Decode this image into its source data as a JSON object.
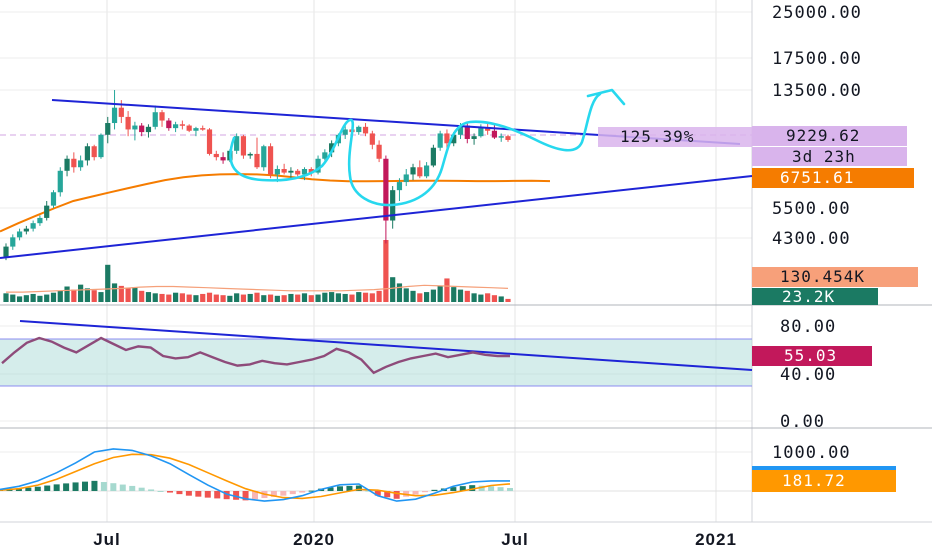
{
  "chart_data": [
    {
      "type": "candlestick",
      "panel": "price",
      "scale": "log",
      "y_ticks": [
        "25000.00",
        "17500.00",
        "13500.00",
        "9229.62",
        "5500.00",
        "4300.00"
      ],
      "labels": {
        "last_price": "9229.62",
        "countdown": "3d 23h",
        "ma_value": "6751.61",
        "volume_value": "130.454K",
        "volume_value_2": "23.2K",
        "change_percent": "125.39%"
      },
      "x_ticks": [
        "Jul",
        "2020",
        "Jul",
        "2021"
      ],
      "candles": [
        [
          3800,
          4200,
          3700,
          4100
        ],
        [
          4100,
          4500,
          4000,
          4400
        ],
        [
          4400,
          4700,
          4300,
          4600
        ],
        [
          4600,
          4800,
          4500,
          4700
        ],
        [
          4700,
          5000,
          4600,
          4900
        ],
        [
          4900,
          5200,
          4800,
          5100
        ],
        [
          5100,
          5800,
          5000,
          5600
        ],
        [
          5600,
          6300,
          5500,
          6200
        ],
        [
          6200,
          7500,
          6000,
          7300
        ],
        [
          7300,
          8200,
          7000,
          8000
        ],
        [
          8000,
          8400,
          7200,
          7500
        ],
        [
          7500,
          8200,
          7300,
          7900
        ],
        [
          7900,
          9000,
          7600,
          8800
        ],
        [
          8800,
          8900,
          7900,
          8100
        ],
        [
          8100,
          9700,
          8000,
          9600
        ],
        [
          9600,
          11000,
          9000,
          10500
        ],
        [
          10500,
          13500,
          10000,
          11800
        ],
        [
          11800,
          12500,
          10500,
          11000
        ],
        [
          11000,
          11500,
          9500,
          10000
        ],
        [
          10000,
          10600,
          9200,
          10300
        ],
        [
          10300,
          10500,
          9500,
          9800
        ],
        [
          9800,
          10400,
          9400,
          10200
        ],
        [
          10200,
          12000,
          10000,
          11400
        ],
        [
          11400,
          11600,
          10200,
          10700
        ],
        [
          10700,
          10900,
          9900,
          10100
        ],
        [
          10100,
          10600,
          9800,
          10400
        ],
        [
          10400,
          10700,
          10000,
          10300
        ],
        [
          10300,
          10400,
          9800,
          9900
        ],
        [
          9900,
          10200,
          9500,
          10100
        ],
        [
          10100,
          10300,
          9900,
          10000
        ],
        [
          10000,
          10100,
          8200,
          8300
        ],
        [
          8300,
          8500,
          7900,
          8100
        ],
        [
          8100,
          8400,
          7700,
          7900
        ],
        [
          7900,
          8600,
          7800,
          8500
        ],
        [
          8500,
          9700,
          8300,
          9500
        ],
        [
          9500,
          9600,
          8000,
          8200
        ],
        [
          8200,
          8400,
          8000,
          8300
        ],
        [
          8300,
          9400,
          7400,
          7500
        ],
        [
          7500,
          8900,
          7300,
          8800
        ],
        [
          8800,
          9000,
          6900,
          7100
        ],
        [
          7100,
          7600,
          6700,
          7400
        ],
        [
          7400,
          7700,
          7100,
          7200
        ],
        [
          7200,
          7500,
          6900,
          7300
        ],
        [
          7300,
          7400,
          7000,
          7100
        ],
        [
          7100,
          7500,
          6800,
          7400
        ],
        [
          7400,
          7500,
          7000,
          7200
        ],
        [
          7200,
          8200,
          7100,
          8000
        ],
        [
          8000,
          8600,
          7900,
          8400
        ],
        [
          8400,
          9200,
          8100,
          9000
        ],
        [
          9000,
          9700,
          8800,
          9600
        ],
        [
          9600,
          10300,
          9300,
          10000
        ],
        [
          10000,
          10400,
          9700,
          9800
        ],
        [
          9800,
          10300,
          9600,
          10200
        ],
        [
          10200,
          10500,
          9500,
          9700
        ],
        [
          9700,
          9900,
          8600,
          8900
        ],
        [
          8900,
          9200,
          7800,
          8000
        ],
        [
          8000,
          8200,
          4200,
          5000
        ],
        [
          5000,
          6500,
          4700,
          6300
        ],
        [
          6300,
          6900,
          5800,
          6700
        ],
        [
          6700,
          7400,
          6500,
          7100
        ],
        [
          7100,
          7700,
          6800,
          7500
        ],
        [
          7500,
          7900,
          6900,
          7000
        ],
        [
          7000,
          7800,
          6900,
          7600
        ],
        [
          7600,
          8900,
          7500,
          8700
        ],
        [
          8700,
          9900,
          8500,
          9700
        ],
        [
          9700,
          10000,
          8600,
          9000
        ],
        [
          9000,
          9800,
          8800,
          9600
        ],
        [
          9600,
          10500,
          9300,
          10300
        ],
        [
          10300,
          10600,
          9000,
          9300
        ],
        [
          9300,
          9700,
          8900,
          9500
        ],
        [
          9500,
          10400,
          9400,
          10100
        ],
        [
          10100,
          10500,
          9600,
          9900
        ],
        [
          9900,
          10400,
          9300,
          9400
        ],
        [
          9400,
          9700,
          9100,
          9500
        ],
        [
          9500,
          9600,
          9100,
          9230
        ]
      ],
      "ma": [
        4600,
        4900,
        5200,
        5500,
        5800,
        6000,
        6200,
        6400,
        6600,
        6800,
        6950,
        7050,
        7100,
        7120,
        7100,
        7050,
        6950,
        6850,
        6780,
        6740,
        6740,
        6750,
        6760,
        6770,
        6770,
        6760,
        6750,
        6750,
        6760,
        6770,
        6751
      ],
      "volume": [
        14,
        12,
        9,
        11,
        13,
        10,
        12,
        15,
        18,
        25,
        20,
        28,
        22,
        19,
        16,
        60,
        30,
        26,
        22,
        24,
        18,
        16,
        14,
        13,
        12,
        15,
        14,
        12,
        11,
        13,
        15,
        12,
        11,
        10,
        14,
        12,
        13,
        15,
        11,
        12,
        10,
        11,
        13,
        12,
        14,
        11,
        12,
        15,
        16,
        14,
        13,
        12,
        16,
        15,
        14,
        18,
        100,
        40,
        30,
        22,
        18,
        14,
        16,
        20,
        26,
        38,
        24,
        20,
        18,
        14,
        12,
        14,
        11,
        9,
        5
      ],
      "volume_ma": [
        16,
        16,
        17,
        18,
        19,
        20,
        21,
        22,
        24,
        25,
        25,
        24,
        23,
        22,
        21,
        20,
        19,
        18,
        18,
        18,
        18,
        19,
        20,
        22,
        25,
        27,
        26,
        25,
        24,
        23,
        22
      ]
    },
    {
      "type": "line",
      "panel": "rsi",
      "y_ticks": [
        "80.00",
        "40.00",
        "0.00"
      ],
      "value_label": "55.03",
      "values": [
        49,
        58,
        66,
        70,
        67,
        62,
        58,
        64,
        70,
        65,
        60,
        63,
        62,
        55,
        53,
        54,
        58,
        54,
        50,
        47,
        48,
        51,
        49,
        48,
        50,
        52,
        55,
        61,
        58,
        52,
        41,
        46,
        50,
        53,
        55,
        57,
        54,
        56,
        58,
        56,
        55,
        55
      ]
    },
    {
      "type": "line",
      "panel": "macd",
      "y_ticks": [
        "1000.00"
      ],
      "value_label": "181.72",
      "macd": [
        40,
        120,
        260,
        470,
        720,
        1000,
        1080,
        1040,
        900,
        700,
        420,
        150,
        -80,
        -200,
        -260,
        -220,
        -120,
        40,
        160,
        180,
        -120,
        -260,
        -210,
        -60,
        120,
        230,
        260,
        258
      ],
      "signal": [
        20,
        60,
        150,
        300,
        500,
        700,
        860,
        940,
        930,
        840,
        680,
        470,
        260,
        60,
        -80,
        -170,
        -190,
        -140,
        -50,
        40,
        20,
        -60,
        -120,
        -110,
        -40,
        50,
        140,
        181.72
      ],
      "hist": [
        30,
        60,
        110,
        170,
        220,
        260,
        200,
        130,
        40,
        -40,
        -120,
        -170,
        -210,
        -240,
        -180,
        -120,
        -40,
        60,
        120,
        140,
        -120,
        -200,
        -90,
        30,
        100,
        150,
        120,
        77
      ]
    }
  ],
  "colors": {
    "up": "#26a69a",
    "down": "#ef5350",
    "up_dark": "#1b7a63",
    "down_dark": "#c2185b",
    "trendline": "#1e24d6",
    "drawing": "#27d8ee",
    "ma": "#f57c00",
    "rsi_line": "#8e4b7a",
    "rsi_band": "#b2dfdb",
    "macd_line": "#2196f3",
    "signal_line": "#ff9800"
  }
}
